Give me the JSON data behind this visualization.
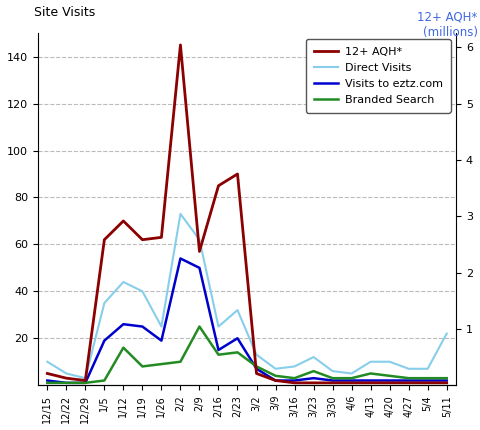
{
  "x_labels": [
    "12/15",
    "12/22",
    "12/29",
    "1/5",
    "1/12",
    "1/19",
    "1/26",
    "2/2",
    "2/9",
    "2/16",
    "2/23",
    "3/2",
    "3/9",
    "3/16",
    "3/23",
    "3/30",
    "4/6",
    "4/13",
    "4/20",
    "4/27",
    "5/4",
    "5/11"
  ],
  "aqh": [
    5,
    3,
    2,
    62,
    70,
    62,
    63,
    145,
    57,
    85,
    90,
    5,
    2,
    1,
    1,
    1,
    1,
    1,
    1,
    1,
    1,
    1
  ],
  "direct_visits": [
    10,
    5,
    3,
    35,
    44,
    40,
    25,
    73,
    62,
    25,
    32,
    13,
    7,
    8,
    12,
    6,
    5,
    10,
    10,
    7,
    7,
    22
  ],
  "visits_eztz": [
    2,
    1,
    1,
    19,
    26,
    25,
    19,
    54,
    50,
    15,
    20,
    7,
    2,
    2,
    3,
    2,
    2,
    2,
    2,
    2,
    2,
    2
  ],
  "branded_search": [
    1,
    1,
    1,
    2,
    16,
    8,
    9,
    10,
    25,
    13,
    14,
    8,
    4,
    3,
    6,
    3,
    3,
    5,
    4,
    3,
    3,
    3
  ],
  "aqh_color": "#8B0000",
  "direct_color": "#87CEEB",
  "visits_color": "#0000CD",
  "branded_color": "#228B22",
  "ylim_left": [
    0,
    150
  ],
  "ylim_right": [
    0,
    6.25
  ],
  "yticks_left": [
    20,
    40,
    60,
    80,
    100,
    120,
    140
  ],
  "yticks_right": [
    1,
    2,
    3,
    4,
    5,
    6
  ],
  "legend_labels": [
    "12+ AQH*",
    "Direct Visits",
    "Visits to eztz.com",
    "Branded Search"
  ],
  "background_color": "#ffffff",
  "grid_color": "#aaaaaa",
  "title_left": "Site Visits",
  "title_right": "12+ AQH*\n(millions)"
}
